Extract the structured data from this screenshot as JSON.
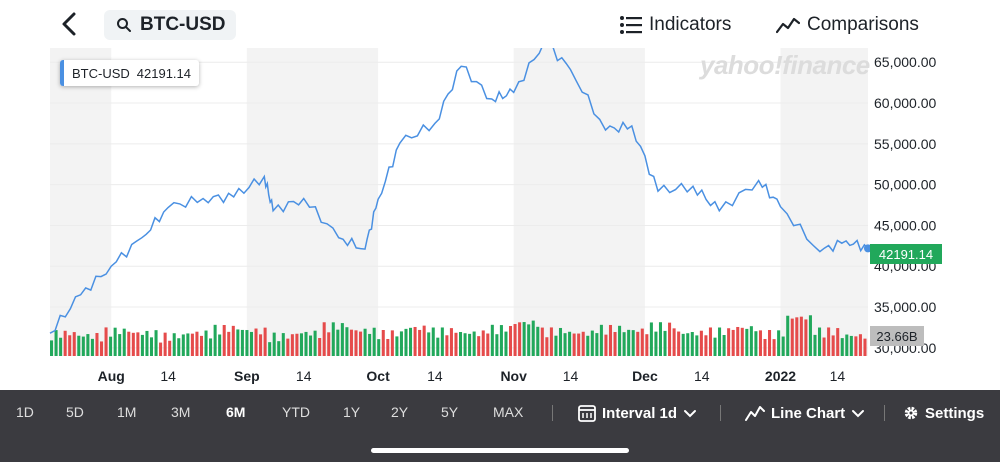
{
  "header": {
    "search_value": "BTC-USD",
    "indicators_label": "Indicators",
    "comparisons_label": "Comparisons"
  },
  "tooltip": {
    "symbol": "BTC-USD",
    "value": "42191.14"
  },
  "watermark": "yahoo!finance",
  "chart_data": {
    "type": "line",
    "title": "",
    "series": [
      {
        "name": "BTC-USD",
        "color": "#4a90e2",
        "x": [
          "2021-07-18",
          "2021-07-25",
          "2021-08-01",
          "2021-08-08",
          "2021-08-14",
          "2021-08-22",
          "2021-08-29",
          "2021-09-05",
          "2021-09-07",
          "2021-09-14",
          "2021-09-22",
          "2021-09-28",
          "2021-10-01",
          "2021-10-06",
          "2021-10-14",
          "2021-10-20",
          "2021-10-27",
          "2021-11-01",
          "2021-11-08",
          "2021-11-14",
          "2021-11-22",
          "2021-11-28",
          "2021-12-04",
          "2021-12-12",
          "2021-12-18",
          "2021-12-27",
          "2022-01-01",
          "2022-01-10",
          "2022-01-16",
          "2022-01-21"
        ],
        "values": [
          31800,
          36500,
          40000,
          43500,
          47200,
          48300,
          48500,
          51000,
          46800,
          48300,
          43500,
          42100,
          48200,
          55100,
          57500,
          64500,
          60500,
          61300,
          67500,
          64100,
          56700,
          57200,
          49200,
          49800,
          46800,
          50500,
          47300,
          41800,
          43100,
          42191.14
        ]
      }
    ],
    "volume_values": [
      6,
      5,
      7,
      6,
      5,
      6,
      8,
      7,
      5,
      6,
      9,
      7,
      6,
      8,
      7,
      6,
      8,
      10,
      7,
      6,
      8,
      7,
      9,
      6,
      7,
      8,
      6,
      12,
      7,
      5
    ],
    "volume_label": "23.66B",
    "current_price_label": "42191.14",
    "x_ticks": [
      "Aug",
      "14",
      "Sep",
      "14",
      "Oct",
      "14",
      "Nov",
      "14",
      "Dec",
      "14",
      "2022",
      "14"
    ],
    "y_ticks": [
      "65,000.00",
      "60,000.00",
      "55,000.00",
      "50,000.00",
      "45,000.00",
      "40,000.00",
      "35,000.00",
      "30,000.00"
    ],
    "y_tick_values": [
      65000,
      60000,
      55000,
      50000,
      45000,
      40000,
      35000,
      30000
    ],
    "ylim": [
      29000,
      66500
    ],
    "grid": true,
    "volume_up_color": "#21a85b",
    "volume_down_color": "#e54b4b"
  },
  "bottom_bar": {
    "ranges": [
      "1D",
      "5D",
      "1M",
      "3M",
      "6M",
      "YTD",
      "1Y",
      "2Y",
      "5Y",
      "MAX"
    ],
    "active_range": "6M",
    "interval_label": "Interval 1d",
    "chart_type_label": "Line Chart",
    "settings_label": "Settings"
  }
}
